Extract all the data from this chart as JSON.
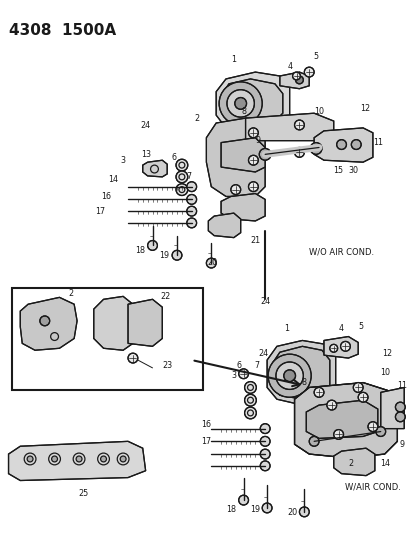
{
  "title": "4308  1500A",
  "bg_color": "#ffffff",
  "lc": "#1a1a1a",
  "fig_width": 4.14,
  "fig_height": 5.33,
  "dpi": 100,
  "label_wo_air": "W/O AIR COND.",
  "label_w_air": "W/AIR COND.",
  "title_fontsize": 11,
  "label_fontsize": 6.0,
  "partnum_fontsize": 5.8
}
